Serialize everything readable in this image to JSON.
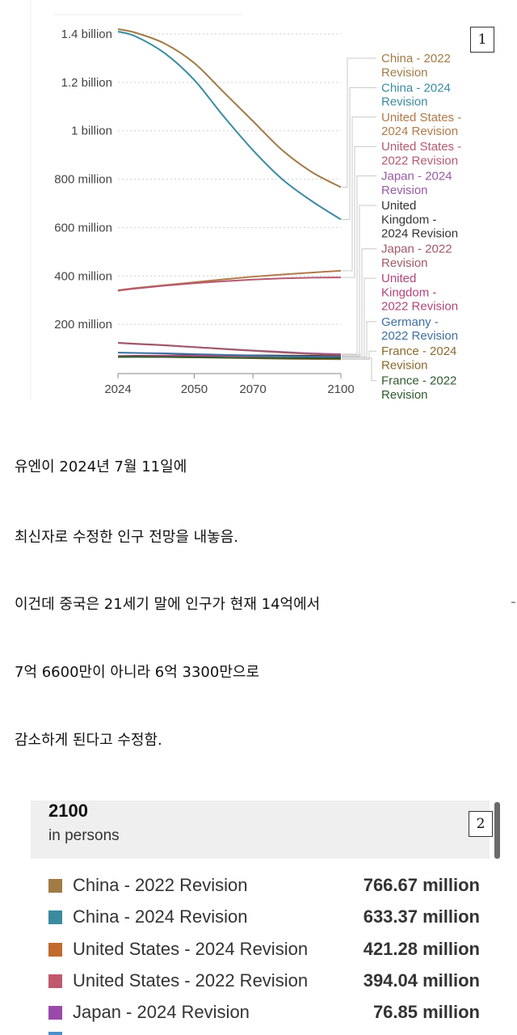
{
  "badges": {
    "first": "1",
    "second": "2"
  },
  "chart_data": {
    "type": "line",
    "x": [
      2024,
      2030,
      2040,
      2050,
      2060,
      2070,
      2080,
      2090,
      2100
    ],
    "xticks": [
      "2024",
      "2050",
      "2070",
      "2100"
    ],
    "xlim": [
      2024,
      2100
    ],
    "yticks": [
      "1.4 billion",
      "1.2 billion",
      "1 billion",
      "800 million",
      "600 million",
      "400 million",
      "200 million"
    ],
    "ylim": [
      0,
      1400000000
    ],
    "grid": true,
    "legend_position": "right",
    "series": [
      {
        "name": "China - 2022 Revision",
        "color": "#a07b45",
        "values": [
          1420000000,
          1405000000,
          1360000000,
          1280000000,
          1160000000,
          1040000000,
          920000000,
          830000000,
          766670000
        ]
      },
      {
        "name": "China - 2024 Revision",
        "color": "#3a8ba0",
        "values": [
          1410000000,
          1390000000,
          1320000000,
          1210000000,
          1060000000,
          920000000,
          800000000,
          710000000,
          633370000
        ]
      },
      {
        "name": "United States - 2024 Revision",
        "color": "#b07a4a",
        "values": [
          341000000,
          350000000,
          362000000,
          374000000,
          386000000,
          397000000,
          406000000,
          414000000,
          421280000
        ]
      },
      {
        "name": "United States - 2022 Revision",
        "color": "#b55a72",
        "values": [
          339000000,
          348000000,
          360000000,
          370000000,
          378000000,
          385000000,
          390000000,
          393000000,
          394040000
        ]
      },
      {
        "name": "Japan - 2024 Revision",
        "color": "#9a5aa6",
        "values": [
          123000000,
          119000000,
          113000000,
          106000000,
          99000000,
          92000000,
          86000000,
          80000000,
          76850000
        ]
      },
      {
        "name": "United Kingdom - 2024 Revision",
        "color": "#333333",
        "values": [
          69000000,
          70000000,
          71000000,
          72000000,
          72000000,
          72000000,
          71000000,
          70000000,
          69000000
        ]
      },
      {
        "name": "Japan - 2022 Revision",
        "color": "#a05a66",
        "values": [
          124000000,
          120000000,
          114000000,
          106000000,
          98000000,
          91000000,
          84000000,
          78000000,
          74000000
        ]
      },
      {
        "name": "United Kingdom - 2022 Revision",
        "color": "#b0467a",
        "values": [
          68000000,
          69000000,
          70000000,
          70000000,
          70000000,
          69000000,
          68000000,
          67000000,
          66000000
        ]
      },
      {
        "name": "Germany - 2022 Revision",
        "color": "#3f6fa0",
        "values": [
          83000000,
          82000000,
          80000000,
          77000000,
          74000000,
          71000000,
          68000000,
          66000000,
          65000000
        ]
      },
      {
        "name": "France - 2024 Revision",
        "color": "#8a6a2c",
        "values": [
          66000000,
          66000000,
          65000000,
          64000000,
          62000000,
          60000000,
          58000000,
          57000000,
          56000000
        ]
      },
      {
        "name": "France - 2022 Revision",
        "color": "#2f5a2f",
        "values": [
          65000000,
          65500000,
          65000000,
          64000000,
          63000000,
          62000000,
          61000000,
          60000000,
          60000000
        ]
      }
    ],
    "legend_lines": [
      {
        "lines": [
          "China - 2022",
          "Revision"
        ],
        "color": "#a07b45"
      },
      {
        "lines": [
          "China - 2024",
          "Revision"
        ],
        "color": "#3a8ba0"
      },
      {
        "lines": [
          "United States -",
          "2024 Revision"
        ],
        "color": "#b07a4a"
      },
      {
        "lines": [
          "United States -",
          "2022 Revision"
        ],
        "color": "#b55a72"
      },
      {
        "lines": [
          "Japan - 2024",
          "Revision"
        ],
        "color": "#9a5aa6"
      },
      {
        "lines": [
          "United",
          "Kingdom -",
          "2024 Revision"
        ],
        "color": "#333333"
      },
      {
        "lines": [
          "Japan - 2022",
          "Revision"
        ],
        "color": "#a05a66"
      },
      {
        "lines": [
          "United",
          "Kingdom -",
          "2022 Revision"
        ],
        "color": "#b0467a"
      },
      {
        "lines": [
          "Germany -",
          "2022 Revision"
        ],
        "color": "#3f6fa0"
      },
      {
        "lines": [
          "France - 2024",
          "Revision"
        ],
        "color": "#8a6a2c"
      },
      {
        "lines": [
          "France - 2022",
          "Revision"
        ],
        "color": "#2f5a2f"
      }
    ]
  },
  "body_text": [
    "유엔이 2024년 7월 11일에",
    "최신자로 수정한 인구 전망을 내놓음.",
    "이건데 중국은 21세기 말에 인구가 현재 14억에서",
    "7억 6600만이 아니라 6억 3300만으로",
    "감소하게 된다고 수정함."
  ],
  "table": {
    "year": "2100",
    "unit": "in persons",
    "rows": [
      {
        "name": "China - 2022 Revision",
        "value": "766.67 million",
        "color": "#a07b45"
      },
      {
        "name": "China - 2024 Revision",
        "value": "633.37 million",
        "color": "#3a8ba0"
      },
      {
        "name": "United States - 2024 Revision",
        "value": "421.28 million",
        "color": "#c06a2e"
      },
      {
        "name": "United States - 2022 Revision",
        "value": "394.04 million",
        "color": "#c0586e"
      },
      {
        "name": "Japan - 2024 Revision",
        "value": "76.85 million",
        "color": "#9a4aa8"
      }
    ]
  }
}
